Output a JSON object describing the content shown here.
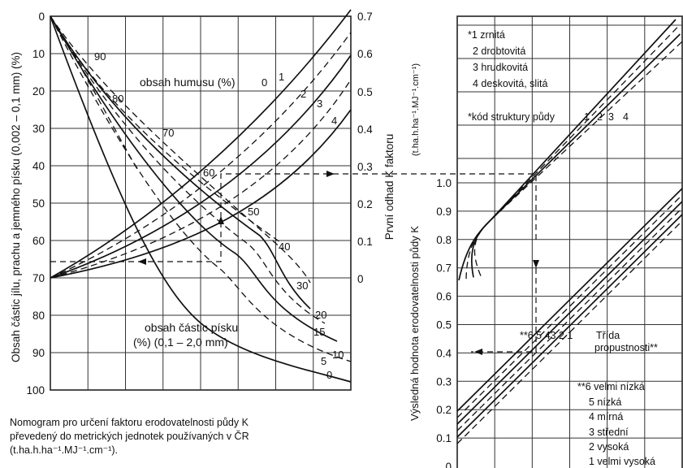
{
  "left_nomogram": {
    "left_axis_label": "Obsah částic jílu, prachu a jemného písku (0,002 – 0,1 mm) (%)",
    "left_axis_ticks": [
      "0",
      "10",
      "20",
      "30",
      "40",
      "50",
      "60",
      "70",
      "80",
      "90",
      "100"
    ],
    "right_axis_label": "První odhad K faktoru",
    "right_axis_ticks": [
      "0.7",
      "0.6",
      "0.5",
      "0.4",
      "0.3",
      "0.2",
      "0.1",
      "0"
    ],
    "humus_label": "obsah humusu (%)",
    "humus_curves": [
      "0",
      "1",
      "2",
      "3",
      "4"
    ],
    "sand_label_line1": "obsah částic písku",
    "sand_label_line2": "(%) (0,1 – 2,0 mm)",
    "sand_curves_upper": [
      "90",
      "80",
      "70",
      "60",
      "50",
      "40",
      "30"
    ],
    "sand_curves_lower": [
      "20",
      "15",
      "10",
      "5",
      "0"
    ]
  },
  "right_nomogram": {
    "y_axis_label": "Výsledná hodnota erodovatelnosti půdy K",
    "y_axis_unit": "(t.ha.h.ha⁻¹.MJ⁻¹.cm⁻¹)",
    "y_ticks": [
      "1.0",
      "0.9",
      "0.8",
      "0.7",
      "0.6",
      "0.5",
      "0.4",
      "0.3",
      "0.2",
      "0.1",
      "0"
    ],
    "structure_legend": [
      "*1 zrnitá",
      "2 drobtovitá",
      "3 hrudkovitá",
      "4 deskovitá, slitá"
    ],
    "structure_code_label": "*kód struktury půdy",
    "structure_codes": [
      "1",
      "2",
      "3",
      "4"
    ],
    "permeability_codes_text": "**6 5 43 2 1",
    "permeability_label_line1": "Třída",
    "permeability_label_line2": "propustnosti**",
    "permeability_legend": [
      "**6 velmi nízká",
      "5 nízká",
      "4 mírná",
      "3 střední",
      "2 vysoká",
      "1 velmi vysoká"
    ]
  },
  "caption": {
    "line1": "Nomogram pro určení  faktoru erodovatelnosti půdy K",
    "line2": "převedený do metrických jednotek používaných v ČR",
    "line3": "(t.ha.h.ha⁻¹.MJ⁻¹.cm⁻¹)."
  }
}
